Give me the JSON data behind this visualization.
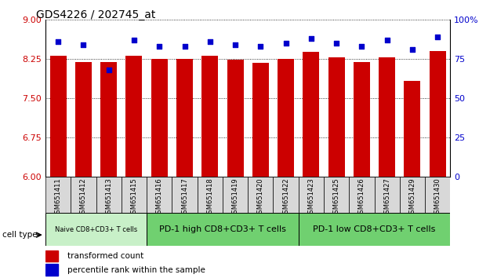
{
  "title": "GDS4226 / 202745_at",
  "samples": [
    "GSM651411",
    "GSM651412",
    "GSM651413",
    "GSM651415",
    "GSM651416",
    "GSM651417",
    "GSM651418",
    "GSM651419",
    "GSM651420",
    "GSM651422",
    "GSM651423",
    "GSM651425",
    "GSM651426",
    "GSM651427",
    "GSM651429",
    "GSM651430"
  ],
  "transformed_count": [
    8.3,
    8.18,
    8.18,
    8.3,
    8.25,
    8.25,
    8.3,
    8.23,
    8.17,
    8.25,
    8.38,
    8.28,
    8.18,
    8.28,
    7.82,
    8.4
  ],
  "percentile_rank": [
    86,
    84,
    68,
    87,
    83,
    83,
    86,
    84,
    83,
    85,
    88,
    85,
    83,
    87,
    81,
    89
  ],
  "ylim_left": [
    6,
    9
  ],
  "ylim_right": [
    0,
    100
  ],
  "yticks_left": [
    6,
    6.75,
    7.5,
    8.25,
    9
  ],
  "yticks_right": [
    0,
    25,
    50,
    75,
    100
  ],
  "cell_type_groups": [
    {
      "label": "Naive CD8+CD3+ T cells",
      "start": 0,
      "end": 4,
      "color": "#c8f0c8",
      "fontsize": 6
    },
    {
      "label": "PD-1 high CD8+CD3+ T cells",
      "start": 4,
      "end": 10,
      "color": "#70d070",
      "fontsize": 8
    },
    {
      "label": "PD-1 low CD8+CD3+ T cells",
      "start": 10,
      "end": 16,
      "color": "#70d070",
      "fontsize": 8
    }
  ],
  "bar_color": "#cc0000",
  "dot_color": "#0000cc",
  "bar_width": 0.65,
  "tick_color_left": "#cc0000",
  "tick_color_right": "#0000cc"
}
